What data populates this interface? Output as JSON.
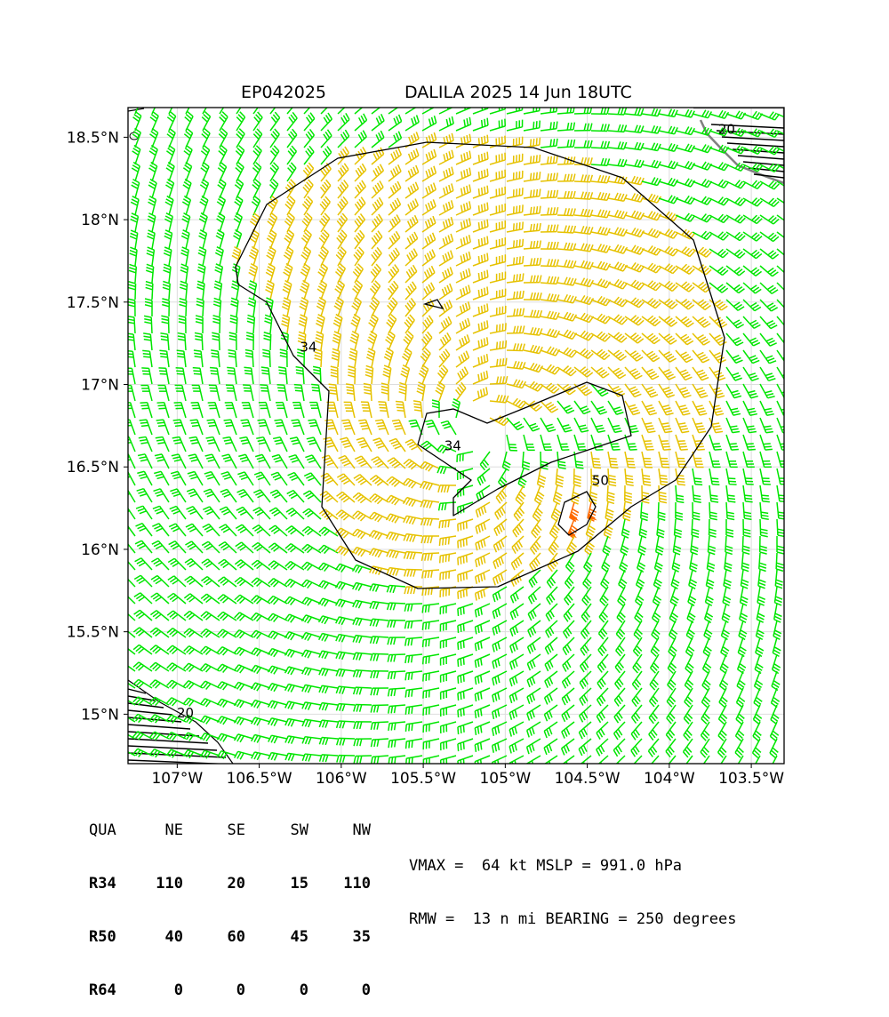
{
  "title": {
    "storm_id": "EP042025",
    "storm_info": "DALILA 2025 14 Jun 18UTC"
  },
  "map": {
    "lon_range": [
      -107.3,
      -103.3
    ],
    "lat_range": [
      14.7,
      18.68
    ],
    "lon_ticks": [
      {
        "value": -107.0,
        "label": "107°W"
      },
      {
        "value": -106.5,
        "label": "106.5°W"
      },
      {
        "value": -106.0,
        "label": "106°W"
      },
      {
        "value": -105.5,
        "label": "105.5°W"
      },
      {
        "value": -105.0,
        "label": "105°W"
      },
      {
        "value": -104.5,
        "label": "104.5°W"
      },
      {
        "value": -104.0,
        "label": "104°W"
      },
      {
        "value": -103.5,
        "label": "103.5°W"
      }
    ],
    "lat_ticks": [
      {
        "value": 18.5,
        "label": "18.5°N"
      },
      {
        "value": 18.0,
        "label": "18°N"
      },
      {
        "value": 17.5,
        "label": "17.5°N"
      },
      {
        "value": 17.0,
        "label": "17°N"
      },
      {
        "value": 16.5,
        "label": "16.5°N"
      },
      {
        "value": 16.0,
        "label": "16°N"
      },
      {
        "value": 15.5,
        "label": "15.5°N"
      },
      {
        "value": 15.0,
        "label": "15°N"
      }
    ],
    "storm_center": {
      "lon": -105.18,
      "lat": 16.72
    },
    "contour_labels": [
      {
        "text": "34",
        "lon": -106.2,
        "lat": 17.2
      },
      {
        "text": "34",
        "lon": -105.32,
        "lat": 16.6
      },
      {
        "text": "50",
        "lon": -104.42,
        "lat": 16.39
      },
      {
        "text": "20",
        "lon": -106.95,
        "lat": 14.98
      },
      {
        "text": "20",
        "lon": -103.65,
        "lat": 18.52
      }
    ],
    "colors": {
      "below_34": "#00e600",
      "r34_to_50": "#e6c200",
      "r50_to_64": "#ff6a00",
      "contour": "#000000",
      "coastline": "#808080"
    }
  },
  "table": {
    "headers": [
      "QUA",
      "NE",
      "SE",
      "SW",
      "NW"
    ],
    "rows": [
      [
        "R34",
        "110",
        "20",
        "15",
        "110"
      ],
      [
        "R50",
        "40",
        "60",
        "45",
        "35"
      ],
      [
        "R64",
        "0",
        "0",
        "0",
        "0"
      ]
    ]
  },
  "stats": {
    "line1": "VMAX =  64 kt MSLP = 991.0 hPa",
    "line2": "RMW =  13 n mi BEARING = 250 degrees"
  }
}
